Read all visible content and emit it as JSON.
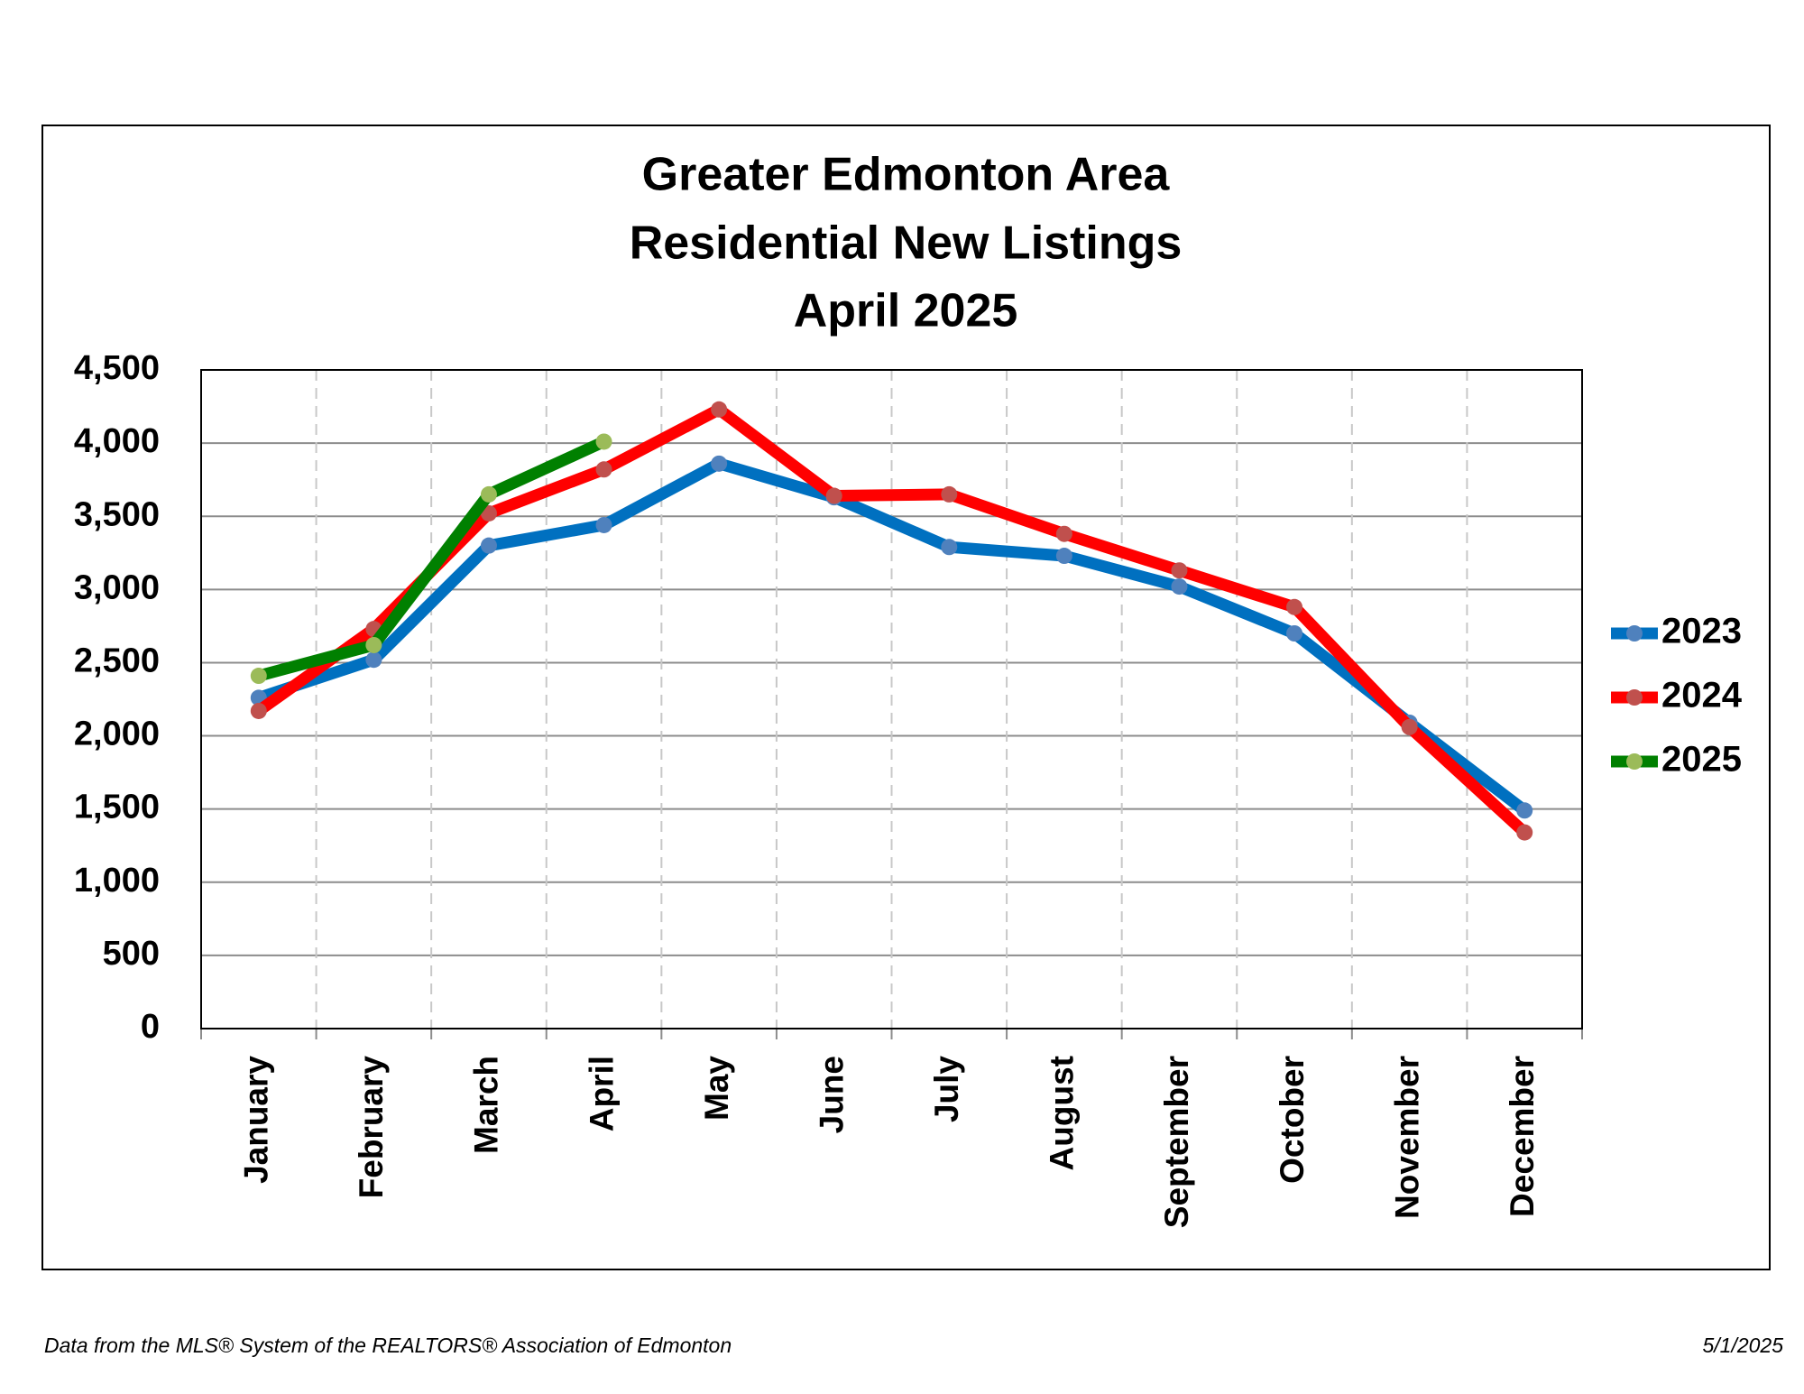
{
  "chart_data": {
    "type": "line",
    "title": [
      "Greater Edmonton Area",
      "Residential New Listings",
      "April 2025"
    ],
    "categories": [
      "January",
      "February",
      "March",
      "April",
      "May",
      "June",
      "July",
      "August",
      "September",
      "October",
      "November",
      "December"
    ],
    "series": [
      {
        "name": "2023",
        "color": "#0070c0",
        "marker_color": "#4f81bd",
        "values": [
          2260,
          2520,
          3300,
          3440,
          3860,
          3630,
          3290,
          3230,
          3020,
          2700,
          2090,
          1490
        ]
      },
      {
        "name": "2024",
        "color": "#ff0000",
        "marker_color": "#c0504d",
        "values": [
          2170,
          2730,
          3520,
          3820,
          4230,
          3640,
          3650,
          3380,
          3130,
          2880,
          2060,
          1340
        ]
      },
      {
        "name": "2025",
        "color": "#008000",
        "marker_color": "#9bbb59",
        "values": [
          2410,
          2620,
          3650,
          4010,
          null,
          null,
          null,
          null,
          null,
          null,
          null,
          null
        ]
      }
    ],
    "ylim": [
      0,
      4500
    ],
    "yticks": [
      0,
      500,
      {
        "value": 1000,
        "label": "1,000"
      },
      {
        "value": 1500,
        "label": "1,500"
      },
      {
        "value": 2000,
        "label": "2,000"
      },
      {
        "value": 2500,
        "label": "2,500"
      },
      {
        "value": 3000,
        "label": "3,000"
      },
      {
        "value": 3500,
        "label": "3,500"
      },
      {
        "value": 4000,
        "label": "4,000"
      },
      {
        "value": 4500,
        "label": "4,500"
      }
    ],
    "grid": true,
    "legend": "right",
    "source": "Data from the MLS® System of the REALTORS® Association of Edmonton",
    "date": "5/1/2025"
  }
}
